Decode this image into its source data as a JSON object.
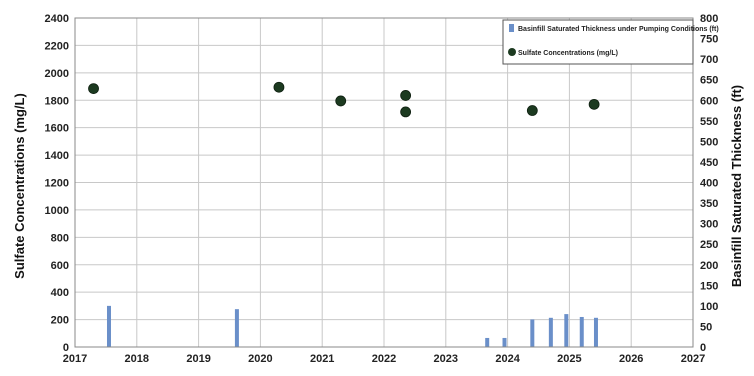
{
  "chart_data": {
    "type": "bar",
    "title": "",
    "xlabel": "",
    "ylabel": "Sulfate Concentrations (mg/L)",
    "y2label": "Basinfill Saturated Thickness (ft)",
    "xlim": [
      2017,
      2027
    ],
    "ylim": [
      0,
      2400
    ],
    "y2lim": [
      0,
      800
    ],
    "x_ticks": [
      "2017",
      "2018",
      "2019",
      "2020",
      "2021",
      "2022",
      "2023",
      "2024",
      "2025",
      "2026",
      "2027"
    ],
    "y_ticks": [
      "0",
      "200",
      "400",
      "600",
      "800",
      "1000",
      "1200",
      "1400",
      "1600",
      "1800",
      "2000",
      "2200",
      "2400"
    ],
    "y2_ticks": [
      "0",
      "50",
      "100",
      "150",
      "200",
      "250",
      "300",
      "350",
      "400",
      "450",
      "500",
      "550",
      "600",
      "650",
      "700",
      "750",
      "800"
    ],
    "grid": true,
    "legend_position": "top-right",
    "series": [
      {
        "name": "Basinfill Saturated Thickness under Pumping Conditions (ft)",
        "kind": "bar",
        "axis": "right",
        "color": "#6a8fc9",
        "points": [
          {
            "x": 2017.55,
            "y": 100
          },
          {
            "x": 2019.62,
            "y": 92
          },
          {
            "x": 2023.67,
            "y": 22
          },
          {
            "x": 2023.95,
            "y": 22
          },
          {
            "x": 2024.4,
            "y": 67
          },
          {
            "x": 2024.7,
            "y": 71
          },
          {
            "x": 2024.95,
            "y": 80
          },
          {
            "x": 2025.2,
            "y": 73
          },
          {
            "x": 2025.43,
            "y": 71
          }
        ]
      },
      {
        "name": "Sulfate Concentrations (mg/L)",
        "kind": "scatter",
        "axis": "left",
        "color": "#1c3a20",
        "points": [
          {
            "x": 2017.3,
            "y": 1885
          },
          {
            "x": 2020.3,
            "y": 1895
          },
          {
            "x": 2021.3,
            "y": 1795
          },
          {
            "x": 2022.35,
            "y": 1835
          },
          {
            "x": 2022.35,
            "y": 1715
          },
          {
            "x": 2024.4,
            "y": 1725
          },
          {
            "x": 2025.4,
            "y": 1770
          }
        ]
      }
    ]
  }
}
